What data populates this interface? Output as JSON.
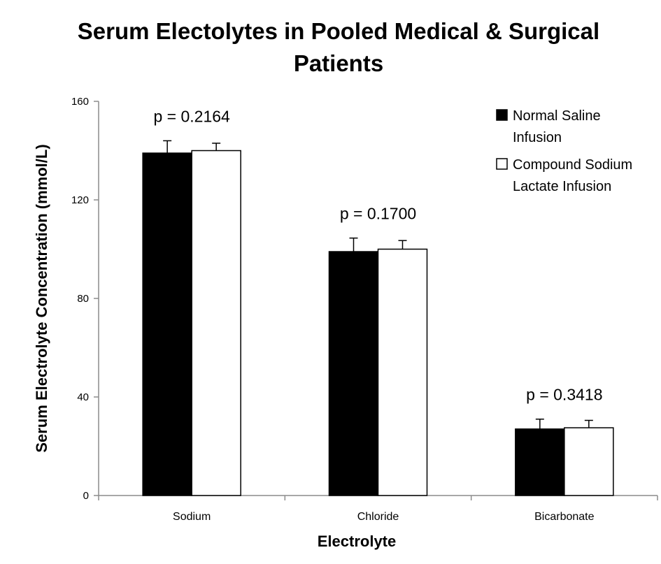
{
  "chart_data": {
    "type": "bar",
    "title": "Serum Electolytes in Pooled Medical & Surgical Patients",
    "title_lines": [
      "Serum Electolytes in Pooled Medical & Surgical",
      "Patients"
    ],
    "xlabel": "Electrolyte",
    "ylabel": "Serum Electrolyte Concentration (mmol/L)",
    "ylim": [
      0,
      160
    ],
    "yticks": [
      0,
      40,
      80,
      120,
      160
    ],
    "categories": [
      "Sodium",
      "Chloride",
      "Bicarbonate"
    ],
    "series": [
      {
        "name": "Normal Saline Infusion",
        "legend_lines": [
          "Normal Saline",
          "Infusion"
        ],
        "color": "#000000",
        "values": [
          139,
          99,
          27
        ],
        "error": [
          5,
          5.5,
          4
        ]
      },
      {
        "name": "Compound Sodium Lactate Infusion",
        "legend_lines": [
          "Compound Sodium",
          "Lactate Infusion"
        ],
        "color": "#ffffff",
        "values": [
          140,
          100,
          27.5
        ],
        "error": [
          3,
          3.5,
          3
        ]
      }
    ],
    "annotations": [
      "p = 0.2164",
      "p = 0.1700",
      "p = 0.3418"
    ],
    "legend_position": "top-right",
    "grid": false
  }
}
